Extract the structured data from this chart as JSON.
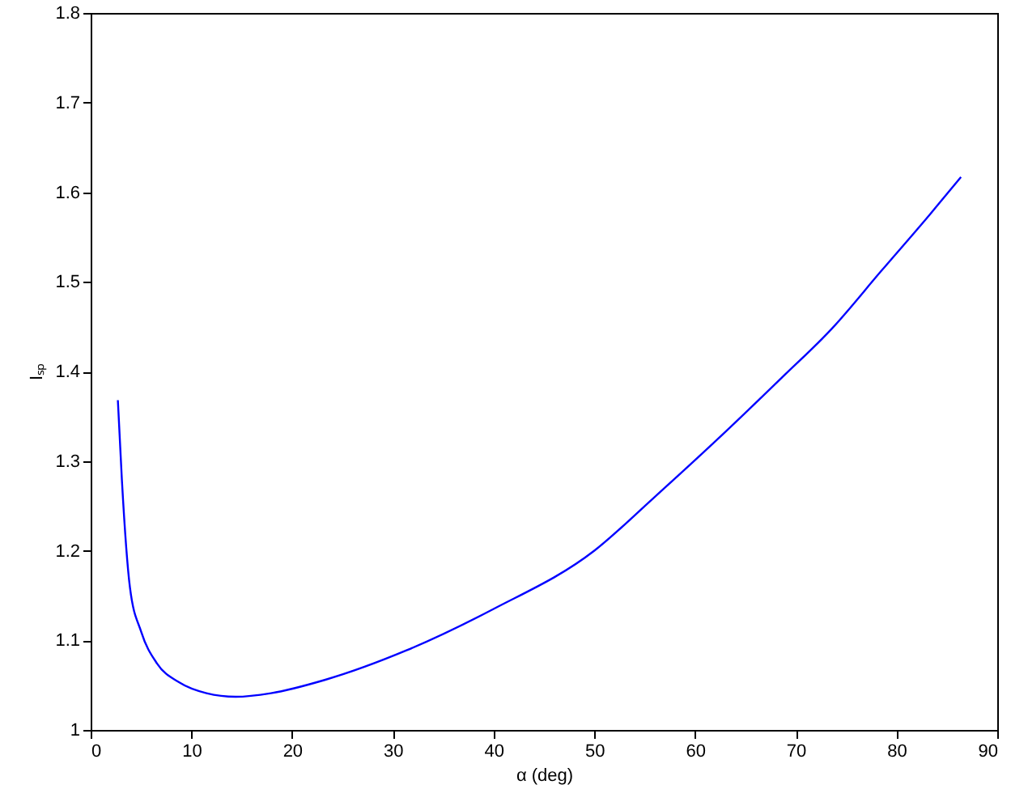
{
  "chart_data": {
    "type": "line",
    "xlabel": "α    (deg)",
    "ylabel": "Iₛₚ",
    "x": [
      2.7,
      3.1,
      3.9,
      5.0,
      6.6,
      8.8,
      11.5,
      14.4,
      17.9,
      23.3,
      31.4,
      40,
      50,
      55.8,
      62.2,
      68.7,
      73.6,
      78.4,
      83.3,
      86.4
    ],
    "series": [
      {
        "color": "#0000ff",
        "values": [
          1.368,
          1.279,
          1.159,
          1.11,
          1.074,
          1.053,
          1.041,
          1.037,
          1.041,
          1.056,
          1.089,
          1.135,
          1.2,
          1.258,
          1.324,
          1.394,
          1.448,
          1.511,
          1.575,
          1.617
        ]
      }
    ],
    "xlim": [
      0,
      90
    ],
    "xticks": [
      0,
      10,
      20,
      30,
      40,
      50,
      60,
      70,
      80,
      90
    ],
    "ylim": [
      1,
      1.8
    ],
    "yticks": [
      1,
      1.1,
      1.2,
      1.3,
      1.4,
      1.5,
      1.6,
      1.7,
      1.8
    ],
    "grid": false
  }
}
